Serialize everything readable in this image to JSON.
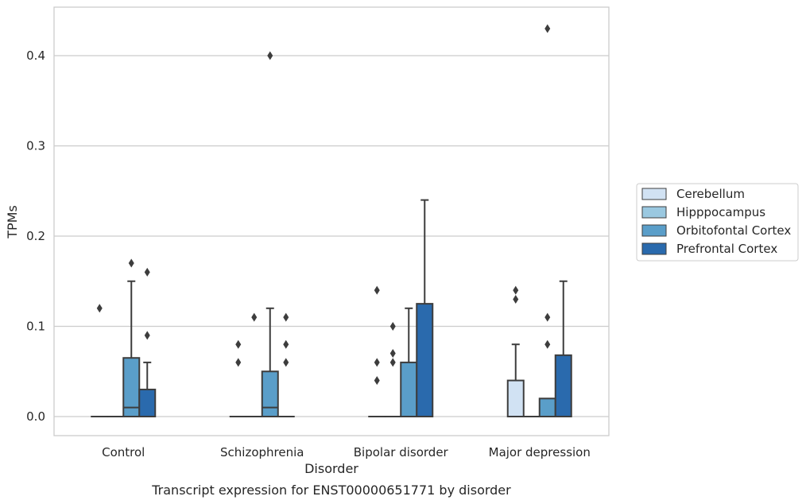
{
  "chart_data": {
    "type": "box",
    "caption": "Transcript expression for ENST00000651771 by disorder",
    "xlabel": "Disorder",
    "ylabel": "TPMs",
    "ylim": [
      -0.021,
      0.453
    ],
    "yticks": [
      0.0,
      0.1,
      0.2,
      0.3,
      0.4
    ],
    "ytick_labels": [
      "0.0",
      "0.1",
      "0.2",
      "0.3",
      "0.4"
    ],
    "grid": "horizontal",
    "legend_position": "right",
    "categories": [
      "Control",
      "Schizophrenia",
      "Bipolar disorder",
      "Major depression"
    ],
    "series": [
      {
        "name": "Cerebellum",
        "color": "#d1e2f3",
        "boxes": [
          {
            "category": "Control",
            "q1": 0,
            "median": 0,
            "q3": 0,
            "whisker_low": 0,
            "whisker_high": 0,
            "outliers": [
              0.12
            ]
          },
          {
            "category": "Schizophrenia",
            "q1": 0,
            "median": 0,
            "q3": 0,
            "whisker_low": 0,
            "whisker_high": 0,
            "outliers": [
              0.06,
              0.08
            ]
          },
          {
            "category": "Bipolar disorder",
            "q1": 0,
            "median": 0,
            "q3": 0,
            "whisker_low": 0,
            "whisker_high": 0,
            "outliers": [
              0.04,
              0.06,
              0.14
            ]
          },
          {
            "category": "Major depression",
            "q1": 0,
            "median": 0,
            "q3": 0.04,
            "whisker_low": 0,
            "whisker_high": 0.08,
            "outliers": [
              0.13,
              0.14
            ]
          }
        ]
      },
      {
        "name": "Hipppocampus",
        "color": "#9ac8e0",
        "boxes": [
          {
            "category": "Control",
            "q1": 0,
            "median": 0,
            "q3": 0,
            "whisker_low": 0,
            "whisker_high": 0,
            "outliers": []
          },
          {
            "category": "Schizophrenia",
            "q1": 0,
            "median": 0,
            "q3": 0,
            "whisker_low": 0,
            "whisker_high": 0,
            "outliers": [
              0.11
            ]
          },
          {
            "category": "Bipolar disorder",
            "q1": 0,
            "median": 0,
            "q3": 0,
            "whisker_low": 0,
            "whisker_high": 0,
            "outliers": [
              0.06,
              0.07,
              0.1
            ]
          },
          {
            "category": "Major depression",
            "q1": 0,
            "median": 0,
            "q3": 0,
            "whisker_low": 0,
            "whisker_high": 0,
            "outliers": []
          }
        ]
      },
      {
        "name": "Orbitofontal Cortex",
        "color": "#5a9ec9",
        "boxes": [
          {
            "category": "Control",
            "q1": 0,
            "median": 0.01,
            "q3": 0.065,
            "whisker_low": 0,
            "whisker_high": 0.15,
            "outliers": [
              0.17
            ]
          },
          {
            "category": "Schizophrenia",
            "q1": 0,
            "median": 0.01,
            "q3": 0.05,
            "whisker_low": 0,
            "whisker_high": 0.12,
            "outliers": [
              0.4
            ]
          },
          {
            "category": "Bipolar disorder",
            "q1": 0,
            "median": 0,
            "q3": 0.06,
            "whisker_low": 0,
            "whisker_high": 0.12,
            "outliers": []
          },
          {
            "category": "Major depression",
            "q1": 0,
            "median": 0,
            "q3": 0.02,
            "whisker_low": 0,
            "whisker_high": 0.02,
            "outliers": [
              0.08,
              0.11,
              0.43
            ]
          }
        ]
      },
      {
        "name": "Prefrontal Cortex",
        "color": "#2a6aad",
        "boxes": [
          {
            "category": "Control",
            "q1": 0,
            "median": 0,
            "q3": 0.03,
            "whisker_low": 0,
            "whisker_high": 0.06,
            "outliers": [
              0.09,
              0.16
            ]
          },
          {
            "category": "Schizophrenia",
            "q1": 0,
            "median": 0,
            "q3": 0,
            "whisker_low": 0,
            "whisker_high": 0,
            "outliers": [
              0.06,
              0.08,
              0.11
            ]
          },
          {
            "category": "Bipolar disorder",
            "q1": 0,
            "median": 0,
            "q3": 0.125,
            "whisker_low": 0,
            "whisker_high": 0.24,
            "outliers": []
          },
          {
            "category": "Major depression",
            "q1": 0,
            "median": 0,
            "q3": 0.068,
            "whisker_low": 0,
            "whisker_high": 0.15,
            "outliers": []
          }
        ]
      }
    ]
  }
}
